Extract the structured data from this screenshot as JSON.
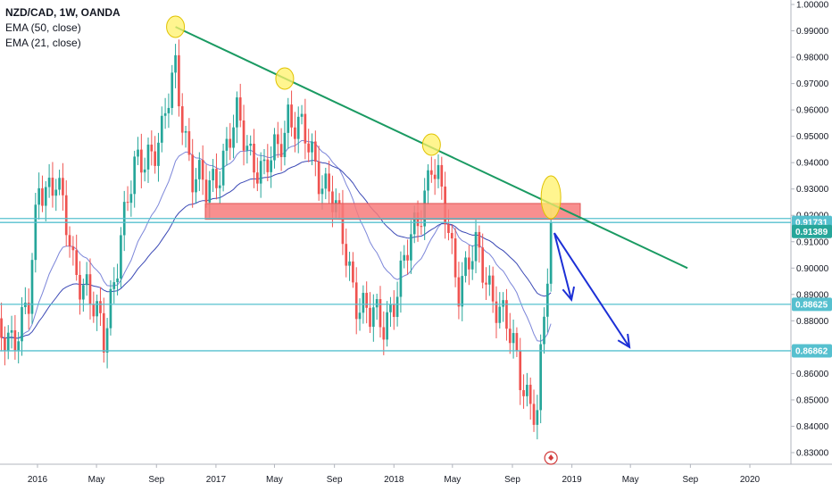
{
  "legend": {
    "symbol": "NZD/CAD, 1W, OANDA",
    "ema50": "EMA (50, close)",
    "ema21": "EMA (21, close)"
  },
  "colors": {
    "up": "#26a69a",
    "down": "#ef5350",
    "hline": "#56c0cf",
    "trend": "#1a9a62",
    "zone": "#f77b7b",
    "arrow": "#1c2fd6",
    "highlight": "#fff26a",
    "ema_fast": "#7c86d9",
    "ema_slow": "#3a48b5",
    "last_price_tag": "#26a69a",
    "level_tag": "#56c0cf"
  },
  "chart_data": {
    "type": "candlestick",
    "title": "NZD/CAD, 1W, OANDA",
    "ylim": [
      0.825,
      1.002
    ],
    "y_ticks": [
      "1.00000",
      "0.99000",
      "0.98000",
      "0.97000",
      "0.96000",
      "0.95000",
      "0.94000",
      "0.93000",
      "0.92000",
      "0.91000",
      "0.90000",
      "0.89000",
      "0.88000",
      "0.87000",
      "0.86000",
      "0.85000",
      "0.84000",
      "0.83000"
    ],
    "x_ticks": [
      "2016",
      "May",
      "Sep",
      "2017",
      "May",
      "Sep",
      "2018",
      "May",
      "Sep",
      "2019",
      "May",
      "Sep",
      "2020"
    ],
    "price_tags": [
      {
        "label": "0.91731",
        "value": 0.91731,
        "kind": "level"
      },
      {
        "label": "0.91389",
        "value": 0.91389,
        "kind": "last"
      },
      {
        "label": "0.88625",
        "value": 0.88625,
        "kind": "level"
      },
      {
        "label": "0.86862",
        "value": 0.86862,
        "kind": "level"
      }
    ],
    "horizontal_lines": [
      0.9188,
      0.91731,
      0.88625,
      0.86862
    ],
    "resistance_zone": [
      0.9185,
      0.9245
    ],
    "trendline": [
      {
        "date": "2016-10-10",
        "price": 0.9915
      },
      {
        "date": "2019-08-26",
        "price": 0.9
      }
    ],
    "highlighted_highs": [
      "2016-10-10",
      "2017-05-22",
      "2018-03-19",
      "2018-11-19"
    ],
    "projection_arrows": [
      [
        {
          "date": "2018-11-26",
          "price": 0.9133
        },
        {
          "date": "2018-12-31",
          "price": 0.888
        }
      ],
      [
        {
          "date": "2018-11-26",
          "price": 0.9133
        },
        {
          "date": "2019-04-29",
          "price": 0.87
        }
      ]
    ],
    "ohlc_keypoints": [
      [
        "2015-10-05",
        0.87
      ],
      [
        "2015-11-09",
        0.875
      ],
      [
        "2015-12-14",
        0.885
      ],
      [
        "2016-01-04",
        0.93
      ],
      [
        "2016-02-08",
        0.935
      ],
      [
        "2016-03-14",
        0.9
      ],
      [
        "2016-04-11",
        0.895
      ],
      [
        "2016-05-16",
        0.87
      ],
      [
        "2016-06-20",
        0.915
      ],
      [
        "2016-07-18",
        0.935
      ],
      [
        "2016-08-15",
        0.945
      ],
      [
        "2016-09-12",
        0.95
      ],
      [
        "2016-10-10",
        0.975
      ],
      [
        "2016-11-14",
        0.935
      ],
      [
        "2016-12-12",
        0.928
      ],
      [
        "2017-01-09",
        0.94
      ],
      [
        "2017-02-13",
        0.955
      ],
      [
        "2017-03-13",
        0.945
      ],
      [
        "2017-04-10",
        0.935
      ],
      [
        "2017-05-08",
        0.945
      ],
      [
        "2017-05-29",
        0.96
      ],
      [
        "2017-06-26",
        0.95
      ],
      [
        "2017-07-24",
        0.94
      ],
      [
        "2017-08-21",
        0.93
      ],
      [
        "2017-09-18",
        0.91
      ],
      [
        "2017-10-16",
        0.89
      ],
      [
        "2017-11-13",
        0.88
      ],
      [
        "2017-12-11",
        0.88
      ],
      [
        "2018-01-15",
        0.895
      ],
      [
        "2018-02-19",
        0.92
      ],
      [
        "2018-03-19",
        0.94
      ],
      [
        "2018-04-16",
        0.92
      ],
      [
        "2018-05-14",
        0.895
      ],
      [
        "2018-06-18",
        0.905
      ],
      [
        "2018-07-16",
        0.895
      ],
      [
        "2018-08-13",
        0.88
      ],
      [
        "2018-09-10",
        0.865
      ],
      [
        "2018-10-08",
        0.85
      ],
      [
        "2018-10-22",
        0.843
      ],
      [
        "2018-11-05",
        0.88
      ],
      [
        "2018-11-19",
        0.914
      ]
    ]
  }
}
